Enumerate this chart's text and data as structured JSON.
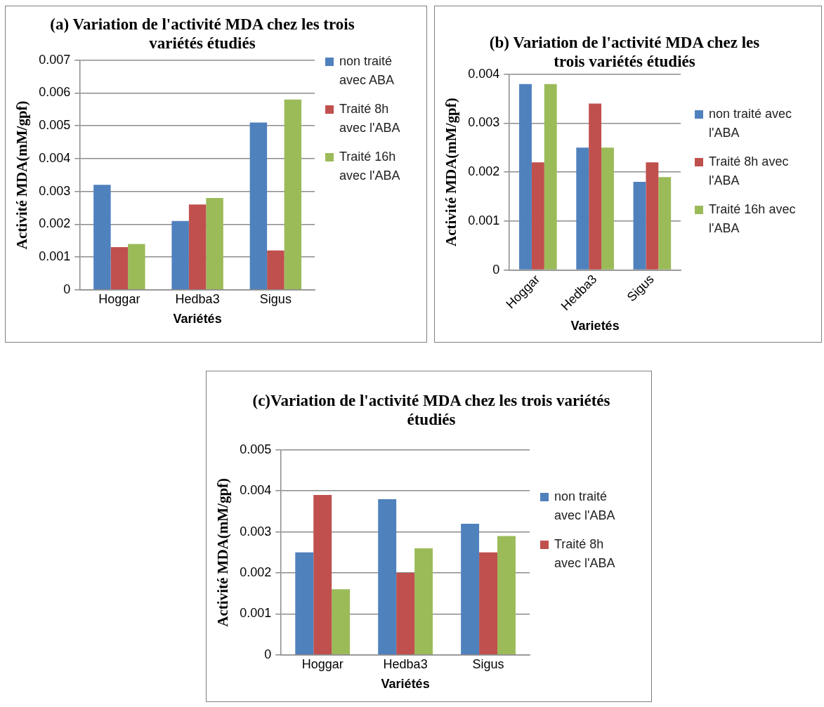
{
  "chart_data": [
    {
      "type": "bar",
      "title": "(a) Variation de l'activité MDA chez les trois variétés étudiés",
      "xlabel": "Variétés",
      "ylabel": "Activité MDA(mM/gpf)",
      "categories": [
        "Hoggar",
        "Hedba3",
        "Sigus"
      ],
      "series": [
        {
          "name": "non traité avec ABA",
          "color": "#4f81bd",
          "values": [
            0.0032,
            0.0021,
            0.0051
          ]
        },
        {
          "name": "Traité 8h avec l'ABA",
          "color": "#c0504d",
          "values": [
            0.0013,
            0.0026,
            0.0012
          ]
        },
        {
          "name": "Traité 16h avec l'ABA",
          "color": "#9bbb59",
          "values": [
            0.0014,
            0.0028,
            0.0058
          ]
        }
      ],
      "ylim": [
        0,
        0.007
      ],
      "yticks": [
        0,
        0.001,
        0.002,
        0.003,
        0.004,
        0.005,
        0.006,
        0.007
      ],
      "grid": "y",
      "legend": "right"
    },
    {
      "type": "bar",
      "title": "(b) Variation de l'activité MDA chez les trois variétés étudiés",
      "xlabel": "Varietés",
      "ylabel": "Activité MDA(mM/gpf)",
      "categories": [
        "Hoggar",
        "Hedba3",
        "Sigus"
      ],
      "series": [
        {
          "name": "non traité avec l'ABA",
          "color": "#4f81bd",
          "values": [
            0.0038,
            0.0025,
            0.0018
          ]
        },
        {
          "name": "Traité 8h avec l'ABA",
          "color": "#c0504d",
          "values": [
            0.0022,
            0.0034,
            0.0022
          ]
        },
        {
          "name": "Traité 16h avec l'ABA",
          "color": "#9bbb59",
          "values": [
            0.0038,
            0.0025,
            0.0019
          ]
        }
      ],
      "ylim": [
        0,
        0.004
      ],
      "yticks": [
        0,
        0.001,
        0.002,
        0.003,
        0.004
      ],
      "grid": "y",
      "legend": "right"
    },
    {
      "type": "bar",
      "title": "(c)Variation de l'activité MDA chez les trois variétés étudiés",
      "xlabel": "Variétés",
      "ylabel": "Activité MDA(mM/gpf)",
      "categories": [
        "Hoggar",
        "Hedba3",
        "Sigus"
      ],
      "series": [
        {
          "name": "non traité avec l'ABA",
          "color": "#4f81bd",
          "values": [
            0.0025,
            0.0038,
            0.0032
          ]
        },
        {
          "name": "Traité 8h avec l'ABA",
          "color": "#c0504d",
          "values": [
            0.0039,
            0.002,
            0.0025
          ]
        },
        {
          "color": "#9bbb59",
          "values": [
            0.0016,
            0.0026,
            0.0029
          ]
        }
      ],
      "ylim": [
        0,
        0.005
      ],
      "yticks": [
        0,
        0.001,
        0.002,
        0.003,
        0.004,
        0.005
      ],
      "grid": "y",
      "legend": "right"
    }
  ]
}
